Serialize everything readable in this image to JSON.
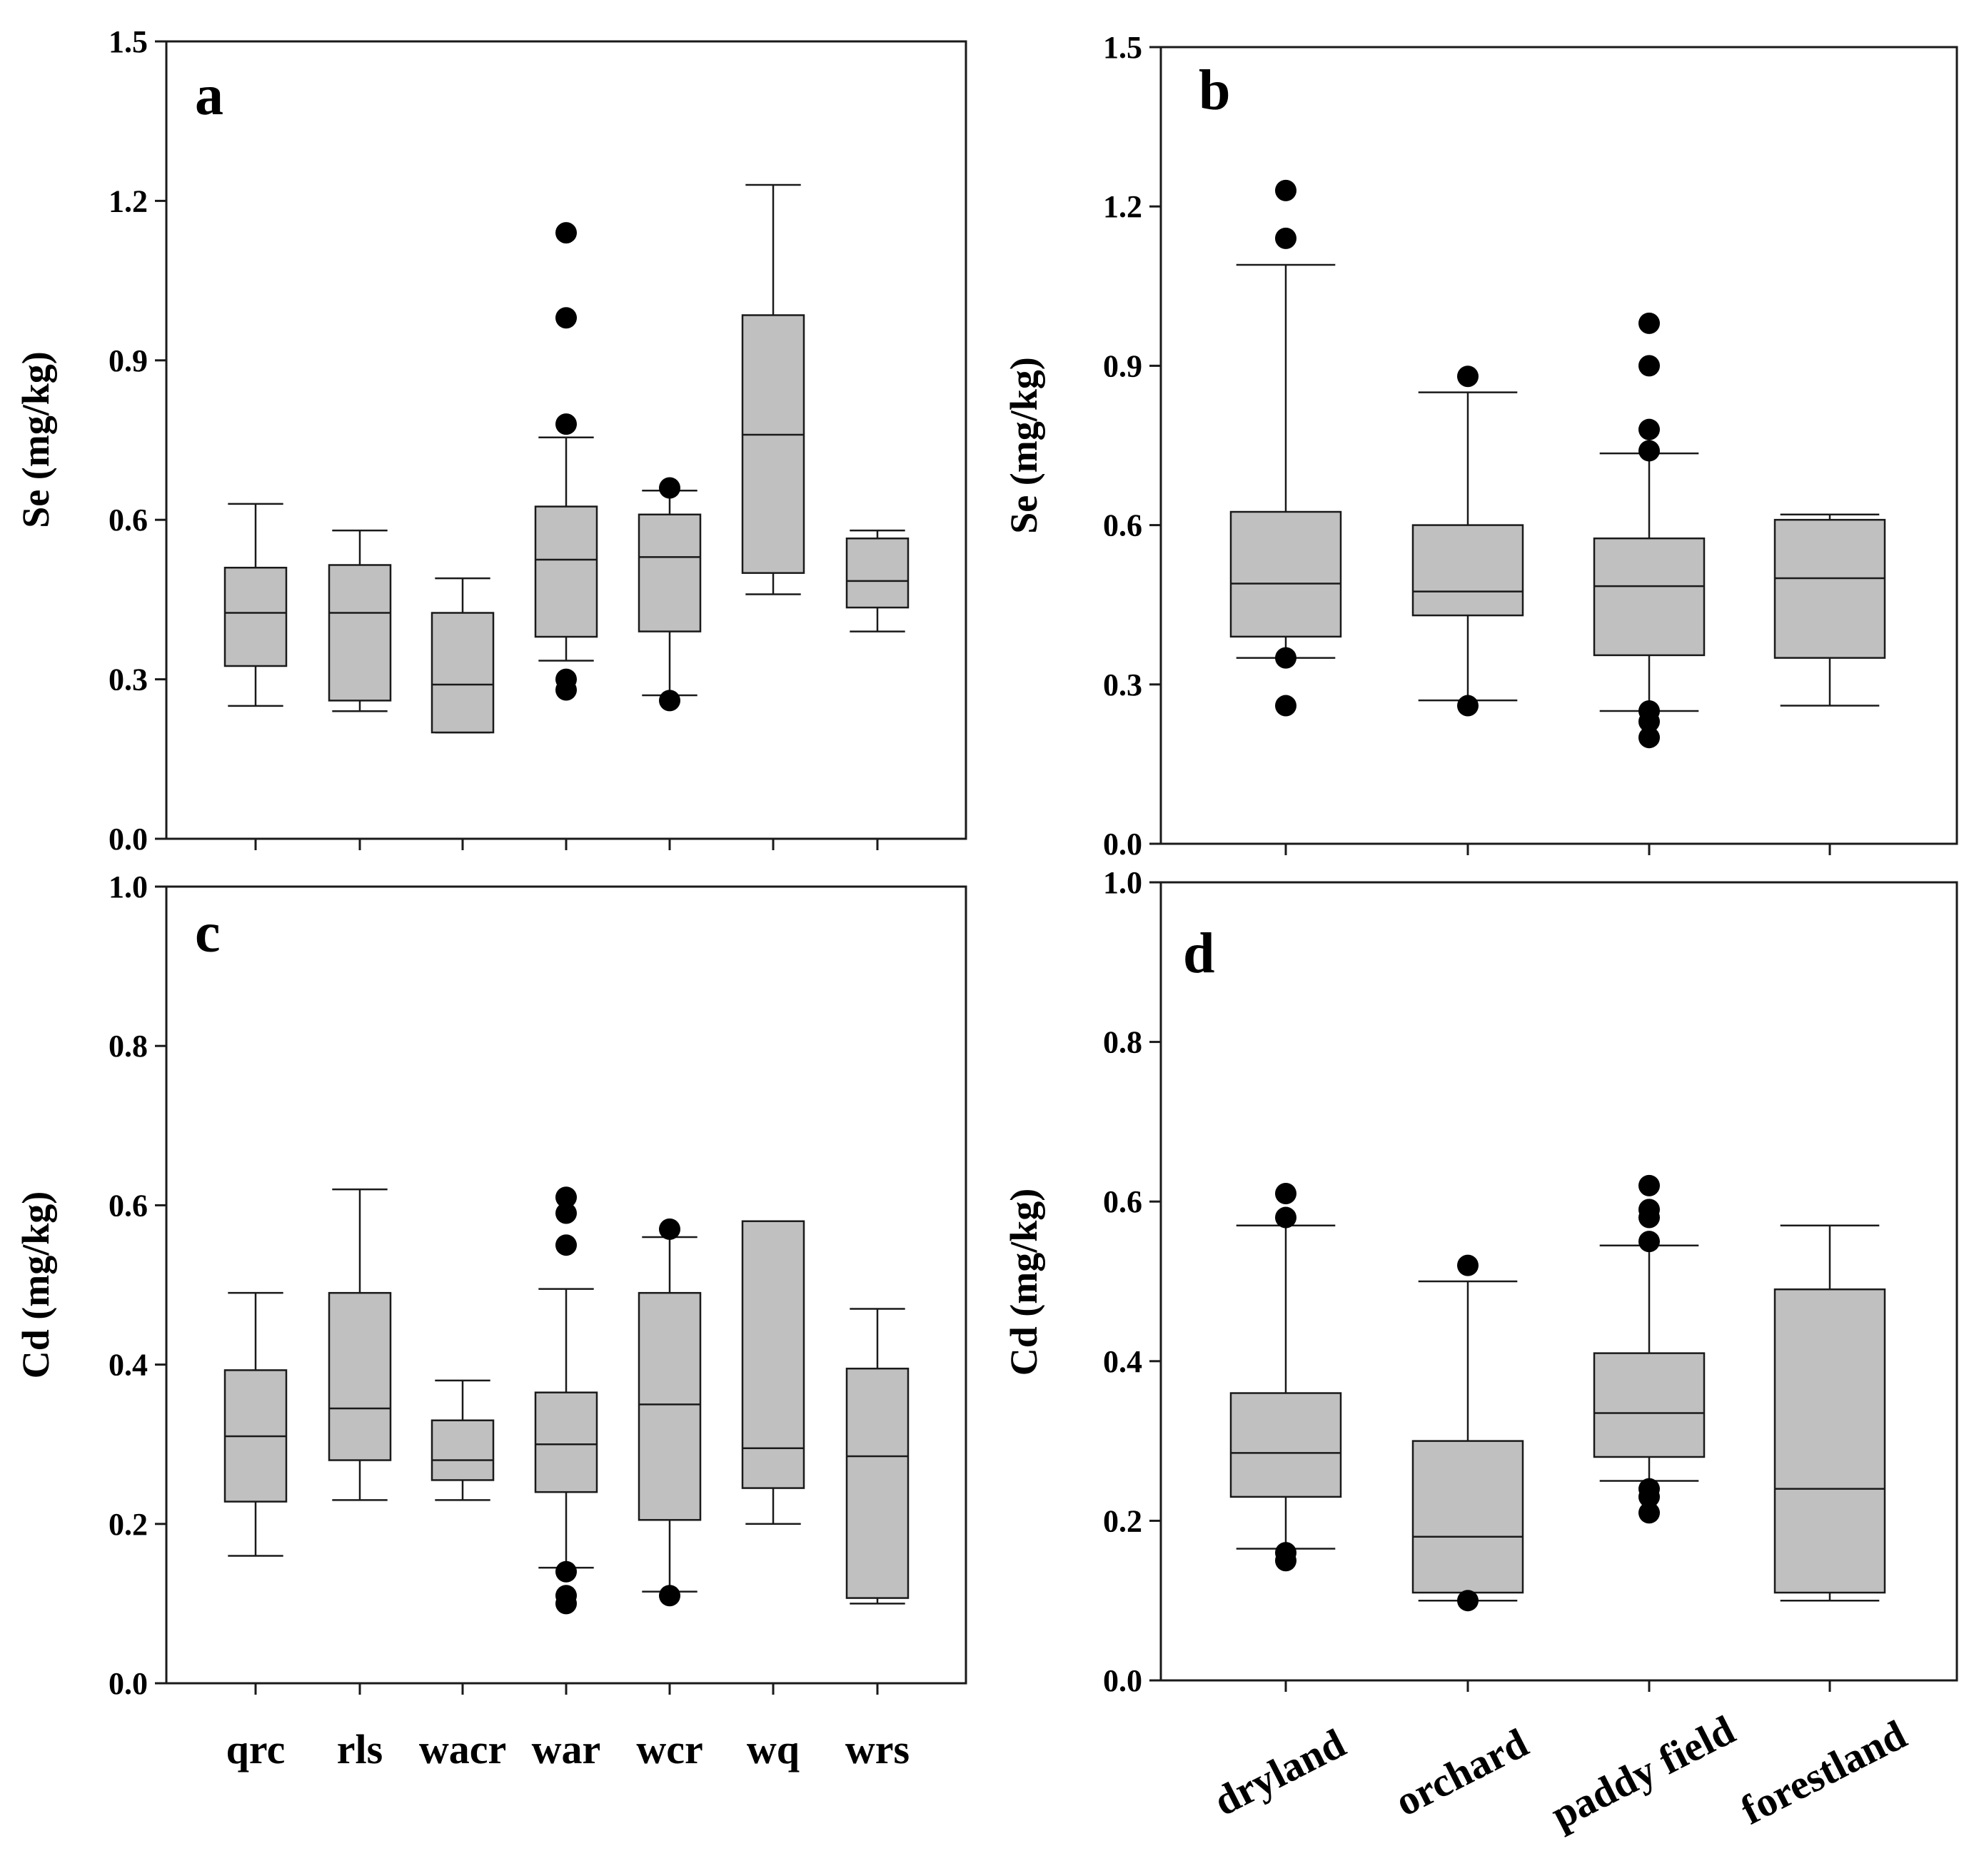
{
  "chart_data": [
    {
      "id": "a",
      "type": "box",
      "panel_label": "a",
      "ylabel": "Se (mg/kg)",
      "ylim": [
        0,
        1.5
      ],
      "yticks": [
        0.0,
        0.3,
        0.6,
        0.9,
        1.2,
        1.5
      ],
      "ytick_labels": [
        "0.0",
        "0.3",
        "0.6",
        "0.9",
        "1.2",
        "1.5"
      ],
      "categories": [
        "qrc",
        "rls",
        "wacr",
        "war",
        "wcr",
        "wq",
        "wrs"
      ],
      "show_category_labels": false,
      "boxes": [
        {
          "q1": 0.325,
          "median": 0.425,
          "q3": 0.51,
          "whisker_low": 0.25,
          "whisker_high": 0.63,
          "outliers": []
        },
        {
          "q1": 0.26,
          "median": 0.425,
          "q3": 0.515,
          "whisker_low": 0.24,
          "whisker_high": 0.58,
          "outliers": []
        },
        {
          "q1": 0.2,
          "median": 0.29,
          "q3": 0.425,
          "whisker_low": 0.2,
          "whisker_high": 0.49,
          "outliers": []
        },
        {
          "q1": 0.38,
          "median": 0.525,
          "q3": 0.625,
          "whisker_low": 0.335,
          "whisker_high": 0.755,
          "outliers": [
            1.14,
            0.98,
            0.78,
            0.3,
            0.28
          ]
        },
        {
          "q1": 0.39,
          "median": 0.53,
          "q3": 0.61,
          "whisker_low": 0.27,
          "whisker_high": 0.655,
          "outliers": [
            0.66,
            0.26
          ]
        },
        {
          "q1": 0.5,
          "median": 0.76,
          "q3": 0.985,
          "whisker_low": 0.46,
          "whisker_high": 1.23,
          "outliers": []
        },
        {
          "q1": 0.435,
          "median": 0.485,
          "q3": 0.565,
          "whisker_low": 0.39,
          "whisker_high": 0.58,
          "outliers": []
        }
      ]
    },
    {
      "id": "b",
      "type": "box",
      "panel_label": "b",
      "ylabel": "Se (mg/kg)",
      "ylim": [
        0,
        1.5
      ],
      "yticks": [
        0.0,
        0.3,
        0.6,
        0.9,
        1.2,
        1.5
      ],
      "ytick_labels": [
        "0.0",
        "0.3",
        "0.6",
        "0.9",
        "1.2",
        "1.5"
      ],
      "categories": [
        "dryland",
        "orchard",
        "paddy field",
        "forestland"
      ],
      "show_category_labels": false,
      "boxes": [
        {
          "q1": 0.39,
          "median": 0.49,
          "q3": 0.625,
          "whisker_low": 0.35,
          "whisker_high": 1.09,
          "outliers": [
            1.23,
            1.14,
            0.35,
            0.26
          ]
        },
        {
          "q1": 0.43,
          "median": 0.475,
          "q3": 0.6,
          "whisker_low": 0.27,
          "whisker_high": 0.85,
          "outliers": [
            0.88,
            0.26
          ]
        },
        {
          "q1": 0.355,
          "median": 0.485,
          "q3": 0.575,
          "whisker_low": 0.25,
          "whisker_high": 0.735,
          "outliers": [
            0.98,
            0.9,
            0.78,
            0.74,
            0.25,
            0.23,
            0.2
          ]
        },
        {
          "q1": 0.35,
          "median": 0.5,
          "q3": 0.61,
          "whisker_low": 0.26,
          "whisker_high": 0.62,
          "outliers": []
        }
      ]
    },
    {
      "id": "c",
      "type": "box",
      "panel_label": "c",
      "ylabel": "Cd (mg/kg)",
      "ylim": [
        0,
        1.0
      ],
      "yticks": [
        0.0,
        0.2,
        0.4,
        0.6,
        0.8,
        1.0
      ],
      "ytick_labels": [
        "0.0",
        "0.2",
        "0.4",
        "0.6",
        "0.8",
        "1.0"
      ],
      "categories": [
        "qrc",
        "rls",
        "wacr",
        "war",
        "wcr",
        "wq",
        "wrs"
      ],
      "show_category_labels": true,
      "category_rotation": 0,
      "boxes": [
        {
          "q1": 0.228,
          "median": 0.31,
          "q3": 0.393,
          "whisker_low": 0.16,
          "whisker_high": 0.49,
          "outliers": []
        },
        {
          "q1": 0.28,
          "median": 0.345,
          "q3": 0.49,
          "whisker_low": 0.23,
          "whisker_high": 0.62,
          "outliers": []
        },
        {
          "q1": 0.255,
          "median": 0.28,
          "q3": 0.33,
          "whisker_low": 0.23,
          "whisker_high": 0.38,
          "outliers": []
        },
        {
          "q1": 0.24,
          "median": 0.3,
          "q3": 0.365,
          "whisker_low": 0.145,
          "whisker_high": 0.495,
          "outliers": [
            0.61,
            0.59,
            0.55,
            0.14,
            0.11,
            0.1
          ]
        },
        {
          "q1": 0.205,
          "median": 0.35,
          "q3": 0.49,
          "whisker_low": 0.115,
          "whisker_high": 0.56,
          "outliers": [
            0.57,
            0.11
          ]
        },
        {
          "q1": 0.245,
          "median": 0.295,
          "q3": 0.58,
          "whisker_low": 0.2,
          "whisker_high": 0.58,
          "outliers": []
        },
        {
          "q1": 0.107,
          "median": 0.285,
          "q3": 0.395,
          "whisker_low": 0.1,
          "whisker_high": 0.47,
          "outliers": []
        }
      ]
    },
    {
      "id": "d",
      "type": "box",
      "panel_label": "d",
      "ylabel": "Cd (mg/kg)",
      "ylim": [
        0,
        1.0
      ],
      "yticks": [
        0.0,
        0.2,
        0.4,
        0.6,
        0.8,
        1.0
      ],
      "ytick_labels": [
        "0.0",
        "0.2",
        "0.4",
        "0.6",
        "0.8",
        "1.0"
      ],
      "categories": [
        "dryland",
        "orchard",
        "paddy field",
        "forestland"
      ],
      "show_category_labels": true,
      "category_rotation": -27,
      "boxes": [
        {
          "q1": 0.23,
          "median": 0.285,
          "q3": 0.36,
          "whisker_low": 0.165,
          "whisker_high": 0.57,
          "outliers": [
            0.61,
            0.58,
            0.16,
            0.15
          ]
        },
        {
          "q1": 0.11,
          "median": 0.18,
          "q3": 0.3,
          "whisker_low": 0.1,
          "whisker_high": 0.5,
          "outliers": [
            0.52,
            0.1
          ]
        },
        {
          "q1": 0.28,
          "median": 0.335,
          "q3": 0.41,
          "whisker_low": 0.25,
          "whisker_high": 0.545,
          "outliers": [
            0.62,
            0.59,
            0.58,
            0.55,
            0.24,
            0.23,
            0.21
          ]
        },
        {
          "q1": 0.11,
          "median": 0.24,
          "q3": 0.49,
          "whisker_low": 0.1,
          "whisker_high": 0.57,
          "outliers": []
        }
      ]
    }
  ],
  "colors": {
    "box_fill": "#c0c0c0",
    "stroke": "#1a1a1a",
    "outlier": "#000000",
    "background": "#ffffff"
  }
}
